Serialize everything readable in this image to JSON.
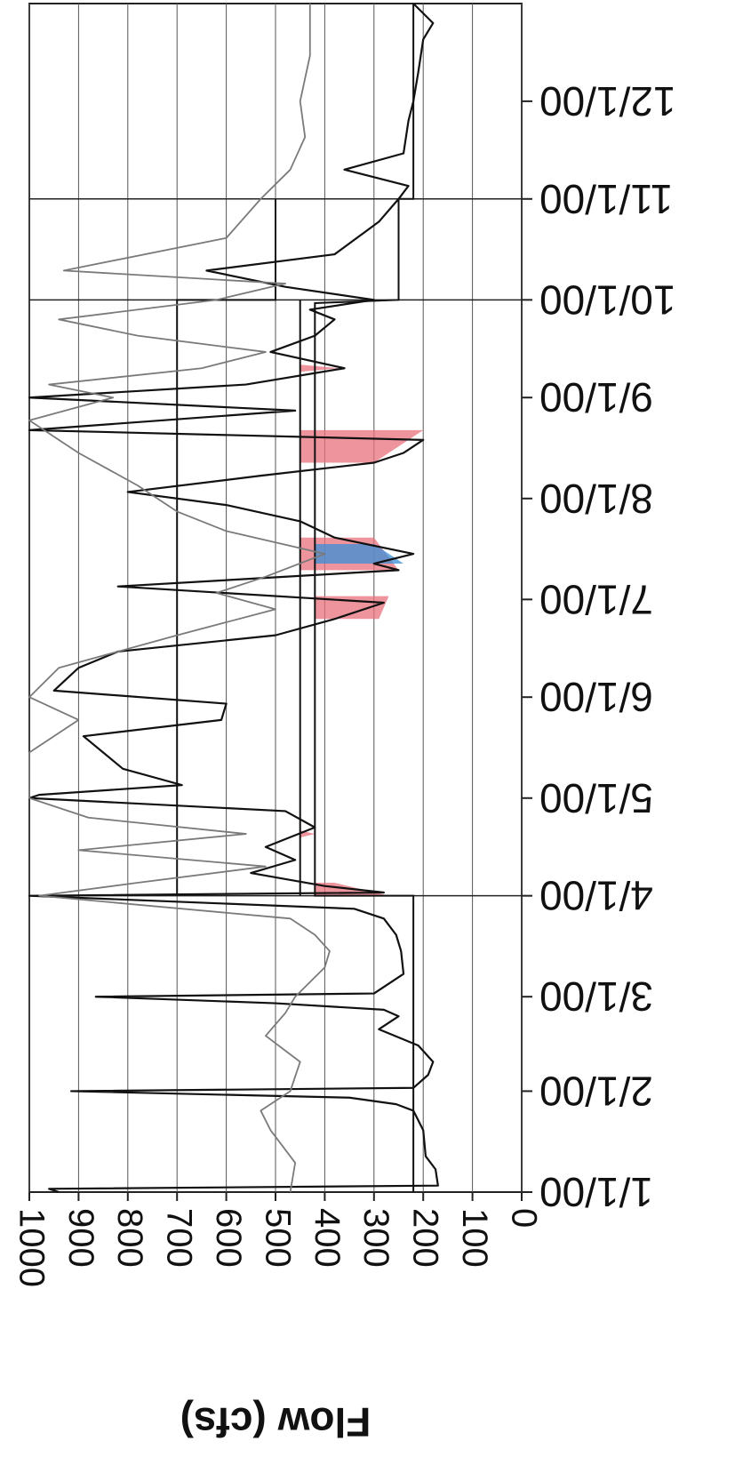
{
  "chart_data": {
    "type": "line",
    "orientation": "page rotated 180 degrees; flow axis horizontal, time axis vertical",
    "ylabel": "Flow (cfs)",
    "xlabel": "",
    "title": "",
    "ylim": [
      0,
      1000
    ],
    "y_ticks": [
      "0",
      "100",
      "200",
      "300",
      "400",
      "500",
      "600",
      "700",
      "800",
      "900",
      "1000"
    ],
    "x_ticks": [
      "1/1/00",
      "2/1/00",
      "3/1/00",
      "4/1/00",
      "5/1/00",
      "6/1/00",
      "7/1/00",
      "8/1/00",
      "9/1/00",
      "10/1/00",
      "11/1/00",
      "12/1/00"
    ],
    "x_range": [
      "1/1/00",
      "12/31/00"
    ],
    "grid": true,
    "legend": "none",
    "series": [
      {
        "color": "#111111",
        "points": [
          [
            "1/1/00",
            940
          ],
          [
            "1/2/00",
            960
          ],
          [
            "1/3/00",
            170
          ],
          [
            "1/8/00",
            175
          ],
          [
            "1/12/00",
            195
          ],
          [
            "1/20/00",
            200
          ],
          [
            "1/26/00",
            220
          ],
          [
            "1/28/00",
            255
          ],
          [
            "1/30/00",
            350
          ],
          [
            "2/1/00",
            915
          ],
          [
            "2/2/00",
            220
          ],
          [
            "2/6/00",
            190
          ],
          [
            "2/10/00",
            180
          ],
          [
            "2/15/00",
            210
          ],
          [
            "2/20/00",
            290
          ],
          [
            "2/24/00",
            250
          ],
          [
            "2/26/00",
            280
          ],
          [
            "2/28/00",
            500
          ],
          [
            "3/1/00",
            865
          ],
          [
            "3/2/00",
            300
          ],
          [
            "3/8/00",
            240
          ],
          [
            "3/15/00",
            245
          ],
          [
            "3/20/00",
            255
          ],
          [
            "3/25/00",
            280
          ],
          [
            "3/28/00",
            340
          ],
          [
            "4/1/00",
            1000
          ],
          [
            "4/2/00",
            280
          ],
          [
            "4/4/00",
            400
          ],
          [
            "4/8/00",
            550
          ],
          [
            "4/12/00",
            460
          ],
          [
            "4/16/00",
            520
          ],
          [
            "4/22/00",
            420
          ],
          [
            "4/27/00",
            480
          ],
          [
            "5/1/00",
            1000
          ],
          [
            "5/2/00",
            980
          ],
          [
            "5/5/00",
            690
          ],
          [
            "5/10/00",
            810
          ],
          [
            "5/20/00",
            890
          ],
          [
            "5/25/00",
            610
          ],
          [
            "5/30/00",
            600
          ],
          [
            "6/3/00",
            950
          ],
          [
            "6/10/00",
            900
          ],
          [
            "6/15/00",
            820
          ],
          [
            "6/20/00",
            500
          ],
          [
            "6/25/00",
            380
          ],
          [
            "6/30/00",
            280
          ],
          [
            "7/5/00",
            820
          ],
          [
            "7/10/00",
            250
          ],
          [
            "7/12/00",
            300
          ],
          [
            "7/15/00",
            220
          ],
          [
            "7/20/00",
            380
          ],
          [
            "7/25/00",
            450
          ],
          [
            "7/30/00",
            600
          ],
          [
            "8/3/00",
            800
          ],
          [
            "8/8/00",
            530
          ],
          [
            "8/12/00",
            300
          ],
          [
            "8/15/00",
            240
          ],
          [
            "8/19/00",
            200
          ],
          [
            "8/22/00",
            1000
          ],
          [
            "8/28/00",
            460
          ],
          [
            "9/1/00",
            1000
          ],
          [
            "9/5/00",
            560
          ],
          [
            "9/10/00",
            360
          ],
          [
            "9/15/00",
            510
          ],
          [
            "9/20/00",
            420
          ],
          [
            "9/25/00",
            380
          ],
          [
            "9/28/00",
            430
          ],
          [
            "10/1/00",
            300
          ],
          [
            "10/5/00",
            480
          ],
          [
            "10/10/00",
            640
          ],
          [
            "10/15/00",
            380
          ],
          [
            "10/25/00",
            290
          ],
          [
            "11/1/00",
            250
          ],
          [
            "11/5/00",
            230
          ],
          [
            "11/10/00",
            360
          ],
          [
            "11/15/00",
            240
          ],
          [
            "11/25/00",
            230
          ],
          [
            "12/1/00",
            220
          ],
          [
            "12/10/00",
            210
          ],
          [
            "12/20/00",
            200
          ],
          [
            "12/25/00",
            180
          ],
          [
            "12/31/00",
            220
          ]
        ]
      },
      {
        "color": "#7a7a7a",
        "points": [
          [
            "1/1/00",
            470
          ],
          [
            "1/10/00",
            460
          ],
          [
            "1/20/00",
            510
          ],
          [
            "1/26/00",
            530
          ],
          [
            "2/1/00",
            470
          ],
          [
            "2/10/00",
            450
          ],
          [
            "2/18/00",
            520
          ],
          [
            "2/25/00",
            480
          ],
          [
            "3/1/00",
            460
          ],
          [
            "3/10/00",
            400
          ],
          [
            "3/15/00",
            390
          ],
          [
            "3/20/00",
            420
          ],
          [
            "3/25/00",
            470
          ],
          [
            "4/1/00",
            980
          ],
          [
            "4/5/00",
            780
          ],
          [
            "4/10/00",
            520
          ],
          [
            "4/15/00",
            900
          ],
          [
            "4/20/00",
            560
          ],
          [
            "4/25/00",
            880
          ],
          [
            "5/1/00",
            1000
          ],
          [
            "5/15/00",
            1000
          ],
          [
            "5/25/00",
            900
          ],
          [
            "6/1/00",
            1000
          ],
          [
            "6/10/00",
            940
          ],
          [
            "6/20/00",
            700
          ],
          [
            "6/28/00",
            500
          ],
          [
            "7/3/00",
            620
          ],
          [
            "7/8/00",
            520
          ],
          [
            "7/15/00",
            400
          ],
          [
            "7/22/00",
            600
          ],
          [
            "7/28/00",
            700
          ],
          [
            "8/5/00",
            780
          ],
          [
            "8/15/00",
            900
          ],
          [
            "8/25/00",
            1000
          ],
          [
            "9/1/00",
            830
          ],
          [
            "9/5/00",
            960
          ],
          [
            "9/10/00",
            650
          ],
          [
            "9/15/00",
            520
          ],
          [
            "9/20/00",
            780
          ],
          [
            "9/25/00",
            940
          ],
          [
            "10/1/00",
            620
          ],
          [
            "10/6/00",
            480
          ],
          [
            "10/10/00",
            930
          ],
          [
            "10/20/00",
            600
          ],
          [
            "11/1/00",
            530
          ],
          [
            "11/10/00",
            470
          ],
          [
            "11/20/00",
            440
          ],
          [
            "12/1/00",
            450
          ],
          [
            "12/15/00",
            430
          ],
          [
            "12/31/00",
            430
          ]
        ]
      }
    ],
    "reference_lines": [
      {
        "color": "#111111",
        "points": [
          [
            "1/1/00",
            220
          ],
          [
            "4/1/00",
            220
          ],
          [
            "4/1/00",
            420
          ],
          [
            "5/1/00",
            420
          ],
          [
            "5/1/00",
            420
          ],
          [
            "9/30/00",
            420
          ],
          [
            "10/1/00",
            250
          ],
          [
            "11/1/00",
            250
          ],
          [
            "11/1/00",
            220
          ],
          [
            "12/31/00",
            220
          ]
        ]
      },
      {
        "color": "#111111",
        "points": [
          [
            "4/1/00",
            700
          ],
          [
            "10/1/00",
            700
          ],
          [
            "10/1/00",
            500
          ],
          [
            "11/1/00",
            500
          ]
        ]
      },
      {
        "color": "#111111",
        "points": [
          [
            "4/1/00",
            450
          ],
          [
            "10/1/00",
            450
          ]
        ]
      }
    ],
    "shaded_areas": [
      {
        "color": "#e8707c",
        "between": [
          [
            "4/1/00",
            420,
            270
          ],
          [
            "4/5/00",
            420,
            380
          ]
        ]
      },
      {
        "color": "#e8707c",
        "between": [
          [
            "4/20/00",
            450,
            420
          ]
        ]
      },
      {
        "color": "#e8707c",
        "between": [
          [
            "6/25/00",
            420,
            290
          ],
          [
            "7/2/00",
            420,
            270
          ]
        ]
      },
      {
        "color": "#e8707c",
        "between": [
          [
            "7/10/00",
            450,
            250
          ],
          [
            "7/20/00",
            450,
            300
          ]
        ]
      },
      {
        "color": "#3a8fd8",
        "between": [
          [
            "7/12/00",
            420,
            240
          ],
          [
            "7/18/00",
            420,
            300
          ]
        ]
      },
      {
        "color": "#e8707c",
        "between": [
          [
            "8/12/00",
            450,
            300
          ],
          [
            "8/22/00",
            450,
            200
          ]
        ]
      },
      {
        "color": "#e8707c",
        "between": [
          [
            "9/10/00",
            450,
            370
          ]
        ]
      }
    ]
  }
}
